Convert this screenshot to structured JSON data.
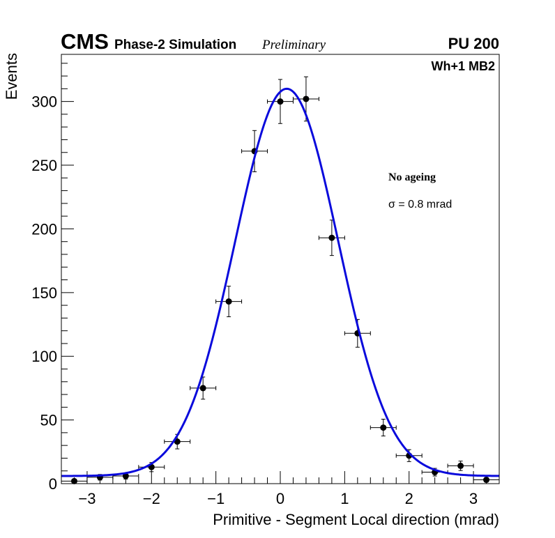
{
  "header": {
    "experiment": "CMS",
    "subtitle": "Phase-2 Simulation",
    "status": "Preliminary",
    "pileup": "PU 200",
    "station": "Wh+1 MB2"
  },
  "annotations": {
    "condition": "No ageing",
    "sigma_symbol": "σ",
    "sigma_text": " = 0.8 mrad"
  },
  "colors": {
    "fit": "#0a0adc",
    "points": "#000000",
    "frame": "#000000"
  },
  "chart_data": {
    "type": "scatter",
    "title": "",
    "xlabel": "Primitive - Segment Local direction (mrad)",
    "ylabel": "Events",
    "xlim": [
      -3.4,
      3.4
    ],
    "ylim": [
      0,
      337
    ],
    "x_ticks": [
      -3,
      -2,
      -1,
      0,
      1,
      2,
      3
    ],
    "x_tick_labels": [
      "−3",
      "−2",
      "−1",
      "0",
      "1",
      "2",
      "3"
    ],
    "y_ticks": [
      0,
      50,
      100,
      150,
      200,
      250,
      300
    ],
    "y_tick_labels": [
      "0",
      "50",
      "100",
      "150",
      "200",
      "250",
      "300"
    ],
    "grid": false,
    "series": [
      {
        "name": "data",
        "x": [
          -3.2,
          -2.8,
          -2.4,
          -2.0,
          -1.6,
          -1.2,
          -0.8,
          -0.4,
          0.0,
          0.4,
          0.8,
          1.2,
          1.6,
          2.0,
          2.4,
          2.8,
          3.2
        ],
        "y": [
          2,
          5,
          6,
          13,
          33,
          75,
          143,
          261,
          300,
          302,
          193,
          118,
          44,
          22,
          9,
          14,
          3
        ],
        "x_err": 0.2,
        "y_err": [
          1.4,
          2.2,
          2.4,
          3.6,
          5.7,
          8.7,
          12,
          16.2,
          17.3,
          17.4,
          13.9,
          10.9,
          6.6,
          4.7,
          3.0,
          3.7,
          1.7
        ]
      },
      {
        "name": "gaussian fit",
        "type": "line",
        "amplitude": 304,
        "mean": 0.1,
        "sigma": 0.8,
        "constant": 6
      }
    ]
  }
}
